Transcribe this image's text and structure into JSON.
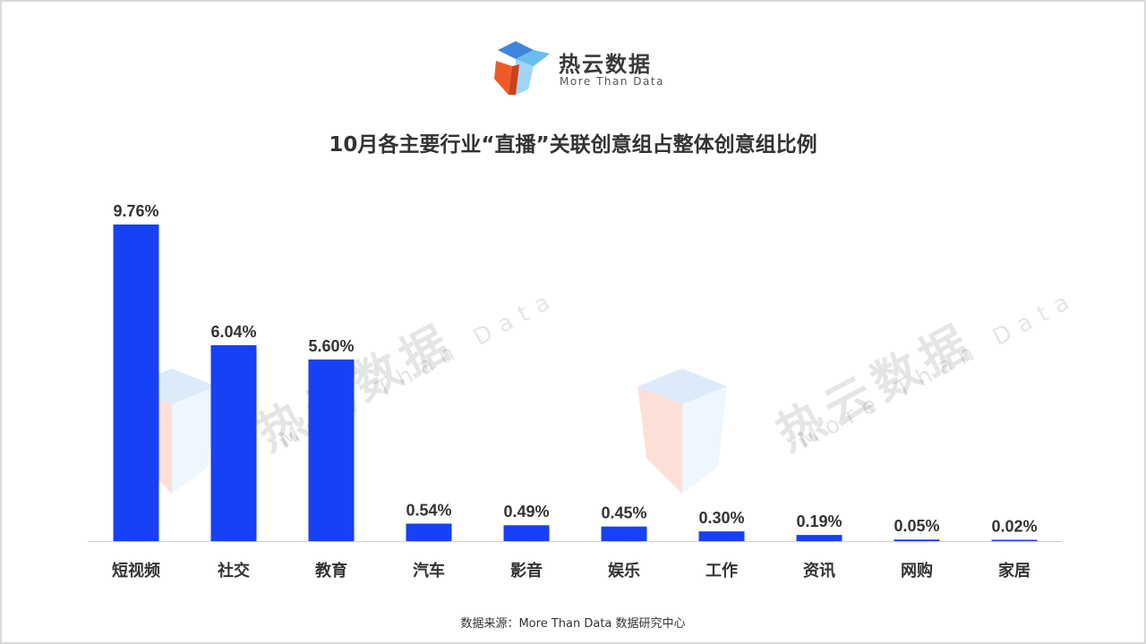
{
  "brand": {
    "name": "热云数据",
    "tagline": "More Than Data"
  },
  "colors": {
    "bar": "#1741f5",
    "logo_blue": "#4a8fe0",
    "logo_light": "#9fd6f5",
    "logo_orange": "#f05a28"
  },
  "watermark": {
    "cn": "热云数据",
    "en": "More Than Data"
  },
  "footer": {
    "source": "数据来源：More Than Data 数据研究中心"
  },
  "chart_data": {
    "type": "bar",
    "title": "10月各主要行业“直播”关联创意组占整体创意组比例",
    "categories": [
      "短视频",
      "社交",
      "教育",
      "汽车",
      "影音",
      "娱乐",
      "工作",
      "资讯",
      "网购",
      "家居"
    ],
    "values": [
      9.76,
      6.04,
      5.6,
      0.54,
      0.49,
      0.45,
      0.3,
      0.19,
      0.05,
      0.02
    ],
    "value_labels": [
      "9.76%",
      "6.04%",
      "5.60%",
      "0.54%",
      "0.49%",
      "0.45%",
      "0.30%",
      "0.19%",
      "0.05%",
      "0.02%"
    ],
    "ylim": [
      0,
      10
    ],
    "xlabel": "",
    "ylabel": "",
    "grid": false,
    "legend": "none"
  }
}
